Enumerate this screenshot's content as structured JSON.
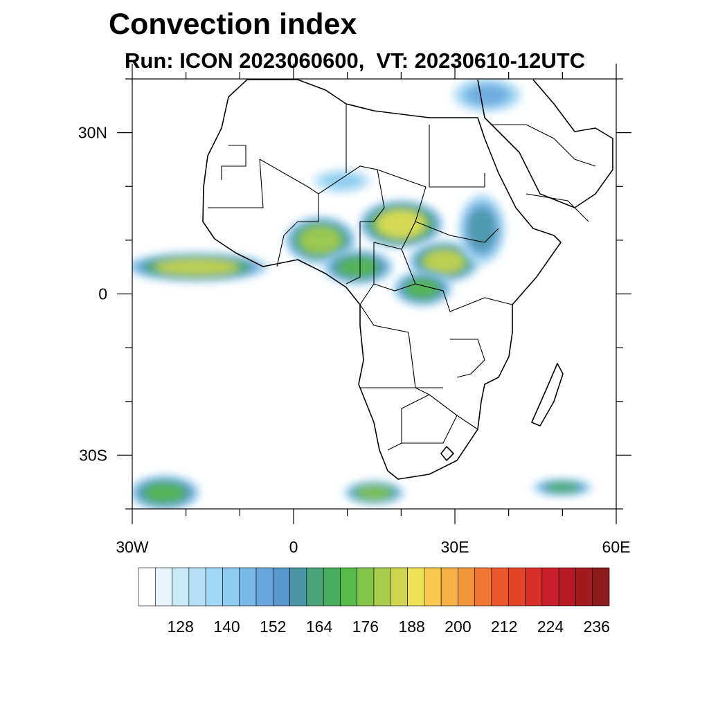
{
  "title": "Convection index",
  "subtitle": "Run: ICON 2023060600,  VT: 20230610-12UTC",
  "map": {
    "extent": {
      "lon": [
        -30,
        60
      ],
      "lat": [
        -40,
        40
      ]
    },
    "lon_major_ticks": [
      {
        "value": -30,
        "label": "30W"
      },
      {
        "value": 0,
        "label": "0"
      },
      {
        "value": 30,
        "label": "30E"
      },
      {
        "value": 60,
        "label": "60E"
      }
    ],
    "lat_major_ticks": [
      {
        "value": 30,
        "label": "30N"
      },
      {
        "value": 0,
        "label": "0"
      },
      {
        "value": -30,
        "label": "30S"
      }
    ],
    "minor_tick_step": 10
  },
  "colorbar": {
    "colors": [
      "#ffffff",
      "#e8f4fb",
      "#cbe8f7",
      "#b7e0f7",
      "#a1d8f5",
      "#8ecbef",
      "#7ab8e6",
      "#68a6dc",
      "#5896cc",
      "#4a95a3",
      "#4aa37a",
      "#46ae5c",
      "#56b94a",
      "#85c44a",
      "#a9cc4c",
      "#cfd54f",
      "#ede156",
      "#f7c94f",
      "#f5b145",
      "#f3953b",
      "#ef7733",
      "#e9592b",
      "#e24528",
      "#d92e28",
      "#c91f2a",
      "#b71a27",
      "#a01a20",
      "#8a1a1c"
    ],
    "tick_labels": [
      "128",
      "140",
      "152",
      "164",
      "176",
      "188",
      "200",
      "212",
      "224",
      "236"
    ]
  },
  "fields": [
    {
      "kind": "blob",
      "lon": 5.0,
      "lat": 10.0,
      "rx": 6.0,
      "ry": 4.0,
      "level": 14
    },
    {
      "kind": "blob",
      "lon": 20.0,
      "lat": 13.0,
      "rx": 7.0,
      "ry": 4.0,
      "level": 16
    },
    {
      "kind": "blob",
      "lon": 28.0,
      "lat": 6.0,
      "rx": 6.0,
      "ry": 3.5,
      "level": 15
    },
    {
      "kind": "blob",
      "lon": -18.0,
      "lat": 5.0,
      "rx": 12.0,
      "ry": 2.5,
      "level": 15
    },
    {
      "kind": "blob",
      "lon": 12.0,
      "lat": 5.0,
      "rx": 6.0,
      "ry": 3.0,
      "level": 12
    },
    {
      "kind": "blob",
      "lon": 24.0,
      "lat": 1.0,
      "rx": 5.0,
      "ry": 3.0,
      "level": 12
    },
    {
      "kind": "blob",
      "lon": 35.0,
      "lat": 12.0,
      "rx": 4.0,
      "ry": 6.0,
      "level": 9
    },
    {
      "kind": "blob",
      "lon": -24.0,
      "lat": -37.0,
      "rx": 6.0,
      "ry": 3.0,
      "level": 12
    },
    {
      "kind": "blob",
      "lon": 15.0,
      "lat": -37.0,
      "rx": 5.0,
      "ry": 2.0,
      "level": 13
    },
    {
      "kind": "blob",
      "lon": 50.0,
      "lat": -36.0,
      "rx": 5.0,
      "ry": 1.5,
      "level": 11
    },
    {
      "kind": "blob",
      "lon": 36.0,
      "lat": 37.0,
      "rx": 6.0,
      "ry": 3.0,
      "level": 7
    },
    {
      "kind": "blob",
      "lon": 9.0,
      "lat": 21.0,
      "rx": 5.0,
      "ry": 2.0,
      "level": 5
    }
  ]
}
